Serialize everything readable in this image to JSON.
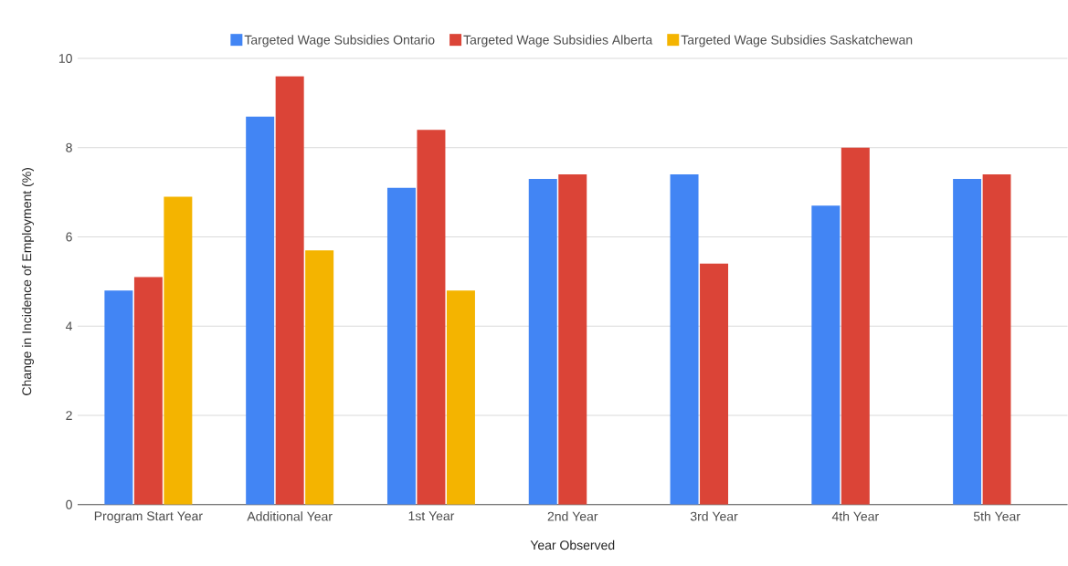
{
  "chart_data": {
    "type": "bar",
    "xlabel": "Year Observed",
    "ylabel": "Change in Incidence of Employment (%)",
    "categories": [
      "Program Start Year",
      "Additional Year",
      "1st Year",
      "2nd Year",
      "3rd Year",
      "4th Year",
      "5th Year"
    ],
    "series": [
      {
        "name": "Targeted Wage Subsidies Ontario",
        "color": "#4285f4",
        "values": [
          4.8,
          8.7,
          7.1,
          7.3,
          7.4,
          6.7,
          7.3
        ]
      },
      {
        "name": "Targeted Wage Subsidies Alberta",
        "color": "#db4437",
        "values": [
          5.1,
          9.6,
          8.4,
          7.4,
          5.4,
          8.0,
          7.4
        ]
      },
      {
        "name": "Targeted Wage Subsidies Saskatchewan",
        "color": "#f4b400",
        "values": [
          6.9,
          5.7,
          4.8,
          null,
          null,
          null,
          null
        ]
      }
    ],
    "ylim": [
      0,
      10
    ],
    "yticks": [
      0,
      2,
      4,
      6,
      8,
      10
    ],
    "grid": "y",
    "legend": "top"
  }
}
